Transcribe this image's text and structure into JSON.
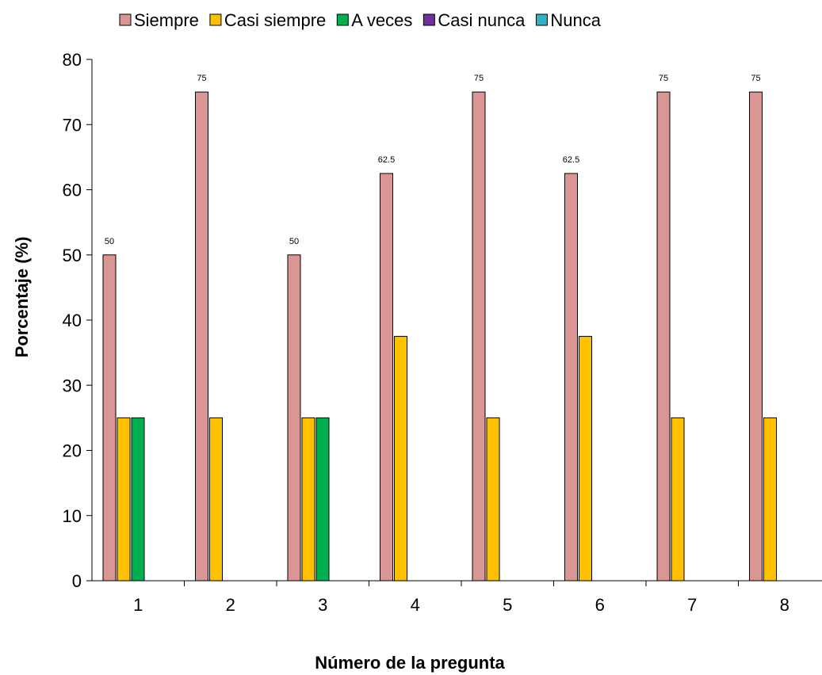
{
  "chart_data": {
    "type": "bar",
    "categories": [
      "1",
      "2",
      "3",
      "4",
      "5",
      "6",
      "7",
      "8"
    ],
    "series": [
      {
        "name": "Siempre",
        "color": "#D99694",
        "values": [
          50,
          75,
          50,
          62.5,
          75,
          62.5,
          75,
          75
        ]
      },
      {
        "name": "Casi siempre",
        "color": "#FFC000",
        "values": [
          25,
          25,
          25,
          37.5,
          25,
          37.5,
          25,
          25
        ]
      },
      {
        "name": "A veces",
        "color": "#00B050",
        "values": [
          25,
          0,
          25,
          0,
          0,
          0,
          0,
          0
        ]
      },
      {
        "name": "Casi nunca",
        "color": "#7030A0",
        "values": [
          0,
          0,
          0,
          0,
          0,
          0,
          0,
          0
        ]
      },
      {
        "name": "Nunca",
        "color": "#31B0C6",
        "values": [
          0,
          0,
          0,
          0,
          0,
          0,
          0,
          0
        ]
      }
    ],
    "data_labels": {
      "series": "Siempre",
      "values": [
        "50",
        "75",
        "50",
        "62.5",
        "75",
        "62.5",
        "75",
        "75"
      ]
    },
    "xlabel": "Número de la pregunta",
    "ylabel": "Porcentaje (%)",
    "ylim": [
      0,
      80
    ],
    "yticks": [
      "0",
      "10",
      "20",
      "30",
      "40",
      "50",
      "60",
      "70",
      "80"
    ],
    "grid": false,
    "legend_position": "top"
  }
}
